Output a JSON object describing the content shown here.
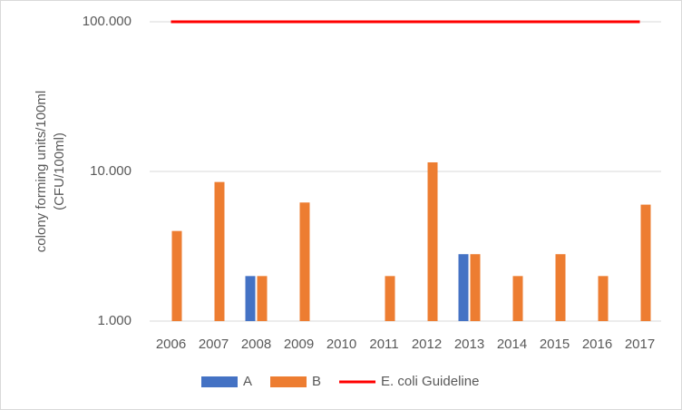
{
  "chart_data": {
    "type": "bar",
    "ylabel": [
      "colony forming units/100ml",
      "(CFU/100ml)"
    ],
    "categories": [
      "2006",
      "2007",
      "2008",
      "2009",
      "2010",
      "2011",
      "2012",
      "2013",
      "2014",
      "2015",
      "2016",
      "2017"
    ],
    "series": [
      {
        "name": "A",
        "color": "#4472c4",
        "type": "bar",
        "values": [
          null,
          null,
          2,
          null,
          null,
          null,
          null,
          2.8,
          null,
          null,
          null,
          null
        ]
      },
      {
        "name": "B",
        "color": "#ed7d31",
        "type": "bar",
        "values": [
          4,
          8.5,
          2,
          6.2,
          null,
          2,
          11.5,
          2.8,
          2,
          2.8,
          2,
          6
        ]
      },
      {
        "name": "E. coli Guideline",
        "color": "#ff0000",
        "type": "line",
        "values": [
          100,
          100,
          100,
          100,
          100,
          100,
          100,
          100,
          100,
          100,
          100,
          100
        ]
      }
    ],
    "log_scale": true,
    "ylim": [
      1,
      100
    ],
    "yticks": [
      {
        "value": 1,
        "label": "1.000"
      },
      {
        "value": 10,
        "label": "10.000"
      },
      {
        "value": 100,
        "label": "100.000"
      }
    ],
    "grid": true,
    "legend": "bottom"
  }
}
